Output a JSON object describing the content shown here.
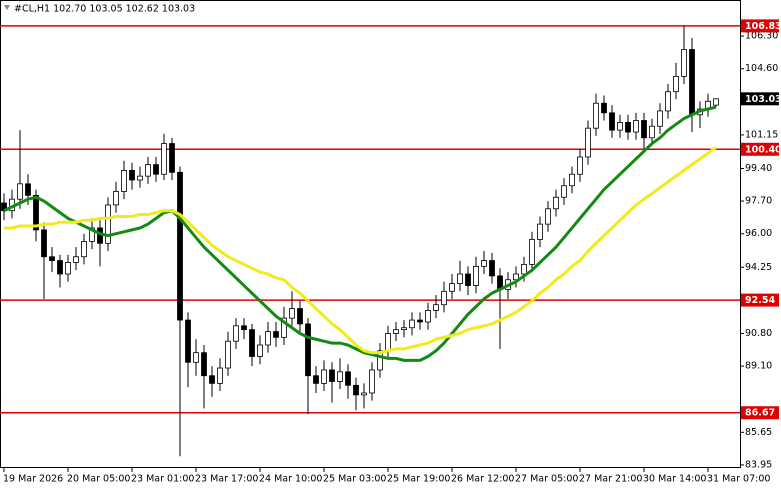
{
  "chart_data": {
    "type": "candlestick",
    "title": "#CL,H1  102.70 103.05 102.62 103.03",
    "categories": [
      "19 Mar 2026",
      null,
      null,
      null,
      null,
      null,
      null,
      null,
      "20 Mar 05:00",
      null,
      null,
      null,
      null,
      null,
      null,
      null,
      "23 Mar 01:00",
      null,
      null,
      null,
      null,
      null,
      null,
      null,
      "23 Mar 17:00",
      null,
      null,
      null,
      null,
      null,
      null,
      null,
      "24 Mar 10:00",
      null,
      null,
      null,
      null,
      null,
      null,
      null,
      "25 Mar 03:00",
      null,
      null,
      null,
      null,
      null,
      null,
      null,
      "25 Mar 19:00",
      null,
      null,
      null,
      null,
      null,
      null,
      null,
      "26 Mar 12:00",
      null,
      null,
      null,
      null,
      null,
      null,
      null,
      "27 Mar 05:00",
      null,
      null,
      null,
      null,
      null,
      null,
      null,
      "27 Mar 21:00",
      null,
      null,
      null,
      null,
      null,
      null,
      null,
      "30 Mar 14:00",
      null,
      null,
      null,
      null,
      null,
      null,
      null,
      "31 Mar 07:00",
      null
    ],
    "open": [
      97.6,
      97.2,
      97.8,
      98.6,
      98.0,
      96.2,
      94.8,
      94.6,
      93.9,
      94.5,
      94.8,
      95.6,
      96.3,
      95.5,
      97.5,
      98.2,
      99.3,
      98.8,
      99.0,
      99.6,
      99.1,
      100.7,
      99.2,
      91.5,
      89.3,
      89.8,
      88.6,
      88.2,
      89.0,
      90.4,
      91.2,
      91.0,
      89.6,
      90.2,
      90.9,
      90.6,
      91.6,
      92.1,
      91.3,
      88.6,
      88.2,
      88.9,
      88.3,
      88.8,
      88.1,
      87.6,
      87.7,
      88.9,
      89.9,
      90.8,
      91.0,
      91.1,
      91.5,
      91.4,
      92.0,
      92.3,
      93.0,
      93.4,
      93.9,
      93.3,
      94.3,
      94.6,
      93.8,
      93.1,
      93.6,
      93.9,
      94.4,
      95.7,
      96.5,
      97.3,
      97.9,
      98.5,
      99.1,
      100.0,
      101.5,
      102.8,
      102.3,
      101.4,
      101.8,
      101.3,
      101.9,
      101.0,
      101.6,
      102.4,
      103.4,
      104.2,
      105.6,
      102.2,
      102.5,
      102.7
    ],
    "high": [
      98.1,
      98.3,
      101.4,
      99.1,
      98.3,
      96.6,
      95.3,
      94.9,
      94.9,
      95.3,
      96.0,
      96.8,
      96.7,
      97.9,
      98.7,
      99.8,
      99.7,
      99.5,
      100.0,
      100.0,
      101.2,
      101.0,
      99.5,
      91.9,
      90.5,
      90.2,
      89.1,
      89.5,
      90.9,
      91.6,
      91.6,
      91.3,
      90.7,
      91.4,
      91.4,
      92.2,
      93.0,
      92.5,
      91.6,
      89.1,
      89.4,
      89.3,
      89.5,
      89.2,
      88.5,
      88.2,
      89.3,
      90.3,
      91.2,
      91.4,
      91.5,
      91.9,
      91.9,
      92.4,
      92.8,
      93.5,
      93.9,
      94.6,
      94.3,
      94.8,
      95.1,
      95.0,
      94.2,
      94.0,
      94.3,
      94.8,
      96.1,
      96.9,
      97.7,
      98.3,
      98.9,
      99.5,
      100.4,
      101.9,
      103.3,
      103.2,
      102.7,
      102.2,
      102.2,
      102.3,
      102.3,
      102.0,
      102.8,
      103.8,
      104.9,
      106.83,
      106.2,
      102.9,
      103.3,
      103.05
    ],
    "low": [
      96.7,
      96.8,
      97.3,
      97.5,
      95.6,
      92.6,
      94.0,
      93.2,
      93.5,
      94.1,
      94.4,
      95.2,
      94.3,
      95.1,
      97.1,
      97.8,
      98.3,
      98.4,
      98.6,
      98.7,
      98.8,
      98.8,
      84.4,
      88.0,
      88.6,
      86.9,
      87.5,
      87.8,
      88.6,
      90.0,
      90.5,
      89.1,
      89.2,
      89.8,
      90.1,
      90.2,
      91.2,
      90.8,
      86.6,
      87.7,
      87.8,
      87.2,
      87.9,
      87.4,
      86.8,
      86.9,
      87.3,
      88.5,
      89.5,
      90.4,
      90.6,
      90.7,
      91.0,
      91.0,
      91.6,
      91.9,
      92.6,
      93.0,
      92.8,
      92.9,
      93.9,
      93.4,
      90.0,
      92.6,
      93.2,
      93.5,
      94.0,
      95.3,
      96.1,
      96.9,
      97.5,
      98.1,
      98.7,
      99.6,
      101.1,
      101.9,
      101.0,
      101.0,
      100.9,
      100.9,
      100.4,
      100.6,
      101.2,
      102.0,
      103.0,
      103.8,
      101.3,
      101.5,
      102.1,
      102.62
    ],
    "close": [
      97.2,
      97.8,
      98.6,
      98.0,
      96.2,
      94.8,
      94.6,
      93.9,
      94.5,
      94.8,
      95.6,
      96.3,
      95.5,
      97.5,
      98.2,
      99.3,
      98.8,
      99.0,
      99.6,
      99.1,
      100.7,
      99.2,
      91.5,
      89.3,
      89.8,
      88.6,
      88.2,
      89.0,
      90.4,
      91.2,
      91.0,
      89.6,
      90.2,
      90.9,
      90.6,
      91.6,
      92.1,
      91.3,
      88.6,
      88.2,
      88.9,
      88.3,
      88.8,
      88.1,
      87.6,
      87.7,
      88.9,
      89.9,
      90.8,
      91.0,
      91.1,
      91.5,
      91.4,
      92.0,
      92.3,
      93.0,
      93.4,
      93.9,
      93.3,
      94.3,
      94.6,
      93.8,
      93.1,
      93.6,
      93.9,
      94.4,
      95.7,
      96.5,
      97.3,
      97.9,
      98.5,
      99.1,
      100.0,
      101.5,
      102.8,
      102.3,
      101.4,
      101.8,
      101.3,
      101.9,
      101.0,
      101.6,
      102.4,
      103.4,
      104.2,
      105.6,
      102.2,
      102.5,
      102.9,
      103.03
    ],
    "moving_averages": [
      {
        "color": "#138a13",
        "values": [
          97.2,
          97.4,
          97.6,
          97.8,
          97.9,
          97.7,
          97.4,
          97.1,
          96.8,
          96.6,
          96.4,
          96.2,
          96.0,
          95.9,
          96.0,
          96.1,
          96.2,
          96.3,
          96.5,
          96.8,
          97.1,
          97.2,
          96.8,
          96.3,
          95.8,
          95.3,
          94.9,
          94.5,
          94.1,
          93.7,
          93.3,
          92.9,
          92.5,
          92.1,
          91.7,
          91.4,
          91.1,
          90.8,
          90.6,
          90.5,
          90.4,
          90.3,
          90.3,
          90.2,
          90.0,
          89.8,
          89.7,
          89.6,
          89.5,
          89.5,
          89.4,
          89.4,
          89.4,
          89.6,
          89.9,
          90.3,
          90.8,
          91.3,
          91.8,
          92.2,
          92.6,
          92.9,
          93.1,
          93.3,
          93.5,
          93.8,
          94.1,
          94.5,
          94.9,
          95.3,
          95.8,
          96.3,
          96.8,
          97.3,
          97.8,
          98.3,
          98.7,
          99.1,
          99.5,
          99.9,
          100.3,
          100.7,
          101.0,
          101.4,
          101.7,
          102.0,
          102.2,
          102.4,
          102.5,
          102.6
        ]
      },
      {
        "color": "#f2ea1a",
        "values": [
          96.3,
          96.3,
          96.4,
          96.4,
          96.4,
          96.5,
          96.5,
          96.6,
          96.6,
          96.6,
          96.7,
          96.7,
          96.8,
          96.8,
          96.9,
          96.9,
          96.9,
          97.0,
          97.0,
          97.1,
          97.2,
          97.2,
          97.0,
          96.6,
          96.2,
          95.8,
          95.4,
          95.1,
          94.8,
          94.6,
          94.4,
          94.2,
          94.0,
          93.9,
          93.7,
          93.6,
          93.2,
          92.9,
          92.5,
          92.1,
          91.7,
          91.3,
          91.0,
          90.6,
          90.2,
          89.9,
          89.8,
          89.8,
          89.9,
          90.0,
          90.0,
          90.1,
          90.2,
          90.3,
          90.5,
          90.6,
          90.7,
          90.8,
          91.0,
          91.1,
          91.2,
          91.3,
          91.5,
          91.7,
          91.9,
          92.2,
          92.5,
          92.9,
          93.2,
          93.6,
          93.9,
          94.3,
          94.6,
          95.1,
          95.5,
          95.9,
          96.3,
          96.7,
          97.1,
          97.5,
          97.8,
          98.1,
          98.4,
          98.7,
          99.0,
          99.3,
          99.6,
          99.9,
          100.2,
          100.5
        ]
      }
    ],
    "levels": [
      106.83,
      {
        "value": 100.4,
        "label": "100.40"
      },
      92.54,
      86.67
    ],
    "level_color": "#e00000",
    "last_price": 103.03,
    "ylim": [
      83.79,
      108.18
    ],
    "yticks": [
      {
        "value": 106.3,
        "label": "106.30"
      },
      {
        "value": 104.6,
        "label": "104.60"
      },
      101.15,
      {
        "value": 99.4,
        "label": "99.40"
      },
      {
        "value": 97.7,
        "label": "97.70"
      },
      {
        "value": 96.0,
        "label": "96.00"
      },
      94.25,
      {
        "value": 90.8,
        "label": "90.80"
      },
      {
        "value": 89.1,
        "label": "89.10"
      },
      85.65,
      83.95
    ]
  }
}
